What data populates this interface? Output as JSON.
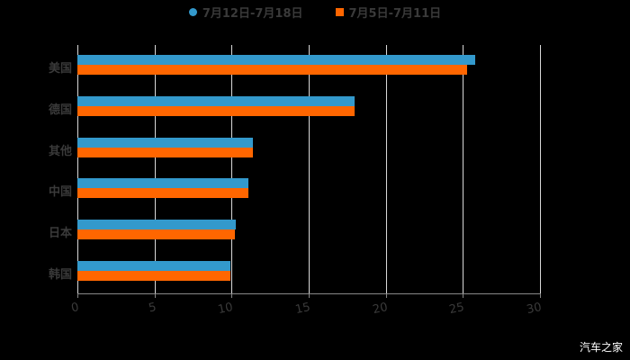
{
  "chart_data": {
    "type": "bar",
    "orientation": "horizontal",
    "title": "",
    "xlabel": "",
    "ylabel": "",
    "xlim": [
      0,
      30
    ],
    "xticks": [
      "0",
      "5",
      "10",
      "15",
      "20",
      "25",
      "30"
    ],
    "grid": true,
    "legend_position": "top",
    "categories": [
      "美国",
      "德国",
      "其他",
      "中国",
      "日本",
      "韩国"
    ],
    "series": [
      {
        "name": "7月12日-7月18日",
        "color": "#3399cc",
        "values": [
          25.8,
          18.0,
          11.4,
          11.1,
          10.3,
          9.9
        ]
      },
      {
        "name": "7月5日-7月11日",
        "color": "#ff6600",
        "values": [
          25.3,
          18.0,
          11.4,
          11.1,
          10.2,
          9.9
        ]
      }
    ]
  },
  "watermark": "汽车之家"
}
